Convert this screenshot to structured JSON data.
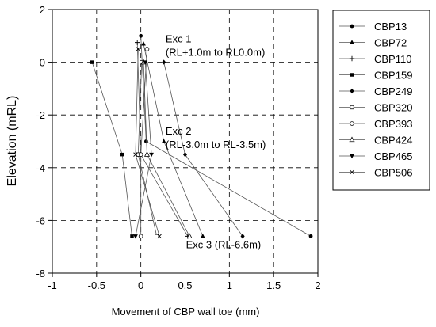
{
  "chart_data": {
    "type": "line",
    "xlabel": "Movement of CBP wall toe (mm)",
    "ylabel": "Elevation (mRL)",
    "xlim": [
      -1,
      2
    ],
    "ylim": [
      -8,
      2
    ],
    "xticks": [
      "-1",
      "-0.5",
      "0",
      "0.5",
      "1",
      "1.5",
      "2"
    ],
    "yticks": [
      "2",
      "0",
      "-2",
      "-4",
      "-6",
      "-8"
    ],
    "grid": true,
    "legend_position": "right",
    "annotations": [
      {
        "lines": [
          "Exc 1",
          "(RL+1.0m to RL0.0m)"
        ],
        "x": 0.28,
        "y": 0.75
      },
      {
        "lines": [
          "Exc 2",
          "(RL-3.0m to RL-3.5m)"
        ],
        "x": 0.28,
        "y": -2.75
      },
      {
        "lines": [
          "Exc 3 (RL-6.6m)"
        ],
        "x": 0.51,
        "y": -7.05
      }
    ],
    "series": [
      {
        "name": "CBP13",
        "marker": "filled-circle",
        "points": [
          [
            0.0,
            1.0
          ],
          [
            0.06,
            -3.0
          ],
          [
            1.92,
            -6.6
          ]
        ]
      },
      {
        "name": "CBP72",
        "marker": "filled-triangle",
        "points": [
          [
            0.03,
            0.7
          ],
          [
            0.26,
            -3.0
          ],
          [
            0.7,
            -6.6
          ]
        ]
      },
      {
        "name": "CBP110",
        "marker": "plus",
        "points": [
          [
            -0.04,
            0.75
          ],
          [
            0.0,
            -3.5
          ],
          [
            0.53,
            -6.6
          ]
        ]
      },
      {
        "name": "CBP159",
        "marker": "filled-square",
        "points": [
          [
            -0.55,
            0.0
          ],
          [
            -0.21,
            -3.5
          ],
          [
            -0.1,
            -6.6
          ]
        ]
      },
      {
        "name": "CBP249",
        "marker": "filled-diamond",
        "points": [
          [
            0.26,
            0.0
          ],
          [
            0.5,
            -3.5
          ],
          [
            1.15,
            -6.6
          ]
        ]
      },
      {
        "name": "CBP320",
        "marker": "open-square",
        "points": [
          [
            0.01,
            0.0
          ],
          [
            -0.03,
            -3.5
          ],
          [
            0.18,
            -6.6
          ]
        ]
      },
      {
        "name": "CBP393",
        "marker": "open-circle",
        "points": [
          [
            0.07,
            0.5
          ],
          [
            0.0,
            -3.5
          ],
          [
            0.0,
            -6.6
          ]
        ]
      },
      {
        "name": "CBP424",
        "marker": "open-triangle",
        "points": [
          [
            0.03,
            0.0
          ],
          [
            0.07,
            -3.5
          ],
          [
            0.55,
            -6.6
          ]
        ]
      },
      {
        "name": "CBP465",
        "marker": "filled-down-triangle",
        "points": [
          [
            0.05,
            0.0
          ],
          [
            0.12,
            -3.5
          ],
          [
            -0.06,
            -6.6
          ]
        ]
      },
      {
        "name": "CBP506",
        "marker": "cross",
        "points": [
          [
            -0.03,
            0.5
          ],
          [
            -0.06,
            -3.5
          ],
          [
            0.21,
            -6.6
          ]
        ]
      }
    ]
  }
}
